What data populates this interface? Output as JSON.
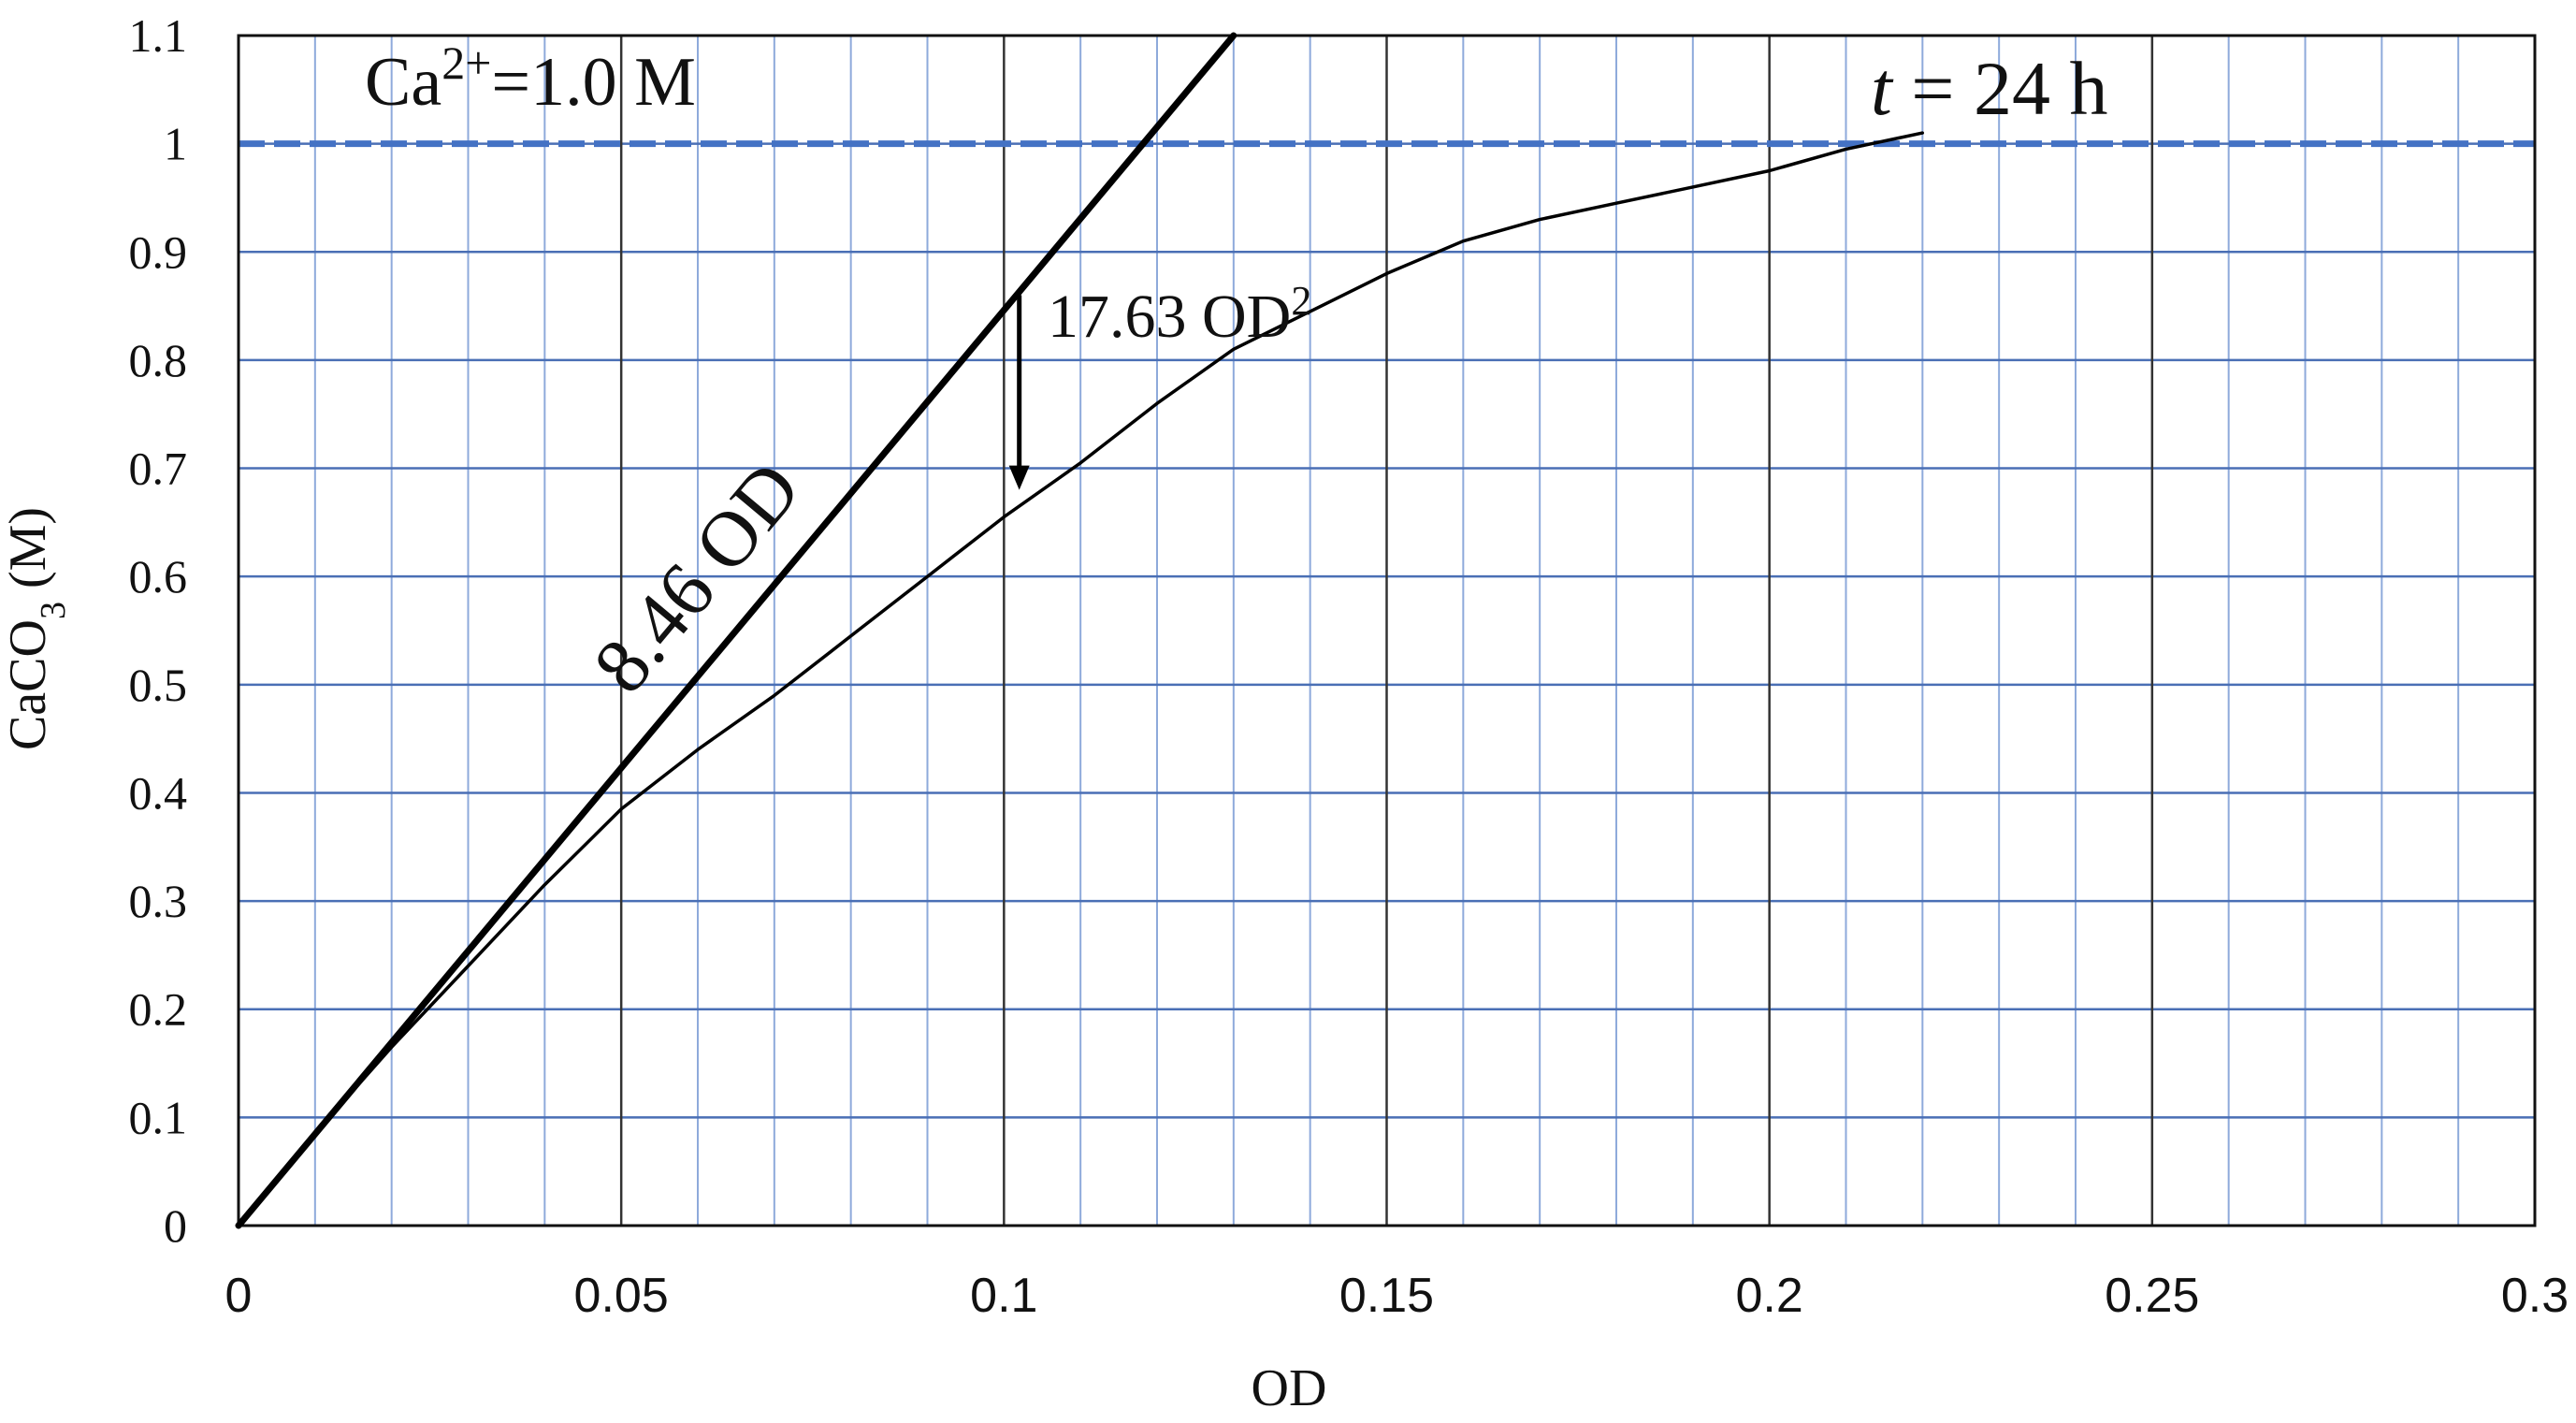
{
  "chart_data": {
    "type": "line",
    "xlabel": "OD",
    "ylabel": {
      "main": "CaCO",
      "sub": "3",
      "unit": " (M)"
    },
    "xlim": [
      0,
      0.3
    ],
    "ylim": [
      0,
      1.1
    ],
    "x_ticks": [
      "0",
      "0.05",
      "0.1",
      "0.15",
      "0.2",
      "0.25",
      "0.3"
    ],
    "y_ticks": [
      "0",
      "0.1",
      "0.2",
      "0.3",
      "0.4",
      "0.5",
      "0.6",
      "0.7",
      "0.8",
      "0.9",
      "1",
      "1.1"
    ],
    "grid": true,
    "minor_grid": true,
    "colors": {
      "minor_grid": "#8eaadb",
      "major_grid_x": "#333333",
      "major_grid_y": "#4a6fb5",
      "reference_line": "#4472c4",
      "series": "#000000"
    },
    "series": [
      {
        "label": "8.46 OD",
        "style": "thick",
        "x": [
          0,
          0.13
        ],
        "y": [
          0,
          1.1
        ]
      },
      {
        "style": "thin",
        "x": [
          0,
          0.01,
          0.02,
          0.03,
          0.04,
          0.05,
          0.06,
          0.07,
          0.08,
          0.09,
          0.1,
          0.11,
          0.12,
          0.13,
          0.14,
          0.15,
          0.16,
          0.17,
          0.18,
          0.19,
          0.2,
          0.21,
          0.22
        ],
        "y": [
          0,
          0.085,
          0.165,
          0.24,
          0.315,
          0.385,
          0.44,
          0.49,
          0.545,
          0.6,
          0.655,
          0.705,
          0.76,
          0.81,
          0.845,
          0.88,
          0.91,
          0.93,
          0.945,
          0.96,
          0.975,
          0.995,
          1.01
        ]
      }
    ],
    "reference_line": {
      "y": 1.0,
      "style": "dashed"
    },
    "annotations": {
      "ca_label": {
        "prefix": "Ca",
        "sup": "2+",
        "suffix": "=1.0 M"
      },
      "time_label": {
        "italic": "t",
        "suffix": " = 24 h"
      },
      "arrow_label": {
        "main": "17.63 OD",
        "sup": "2"
      },
      "arrow": {
        "x": 0.102,
        "y_from": 0.86,
        "y_to": 0.68
      }
    }
  }
}
